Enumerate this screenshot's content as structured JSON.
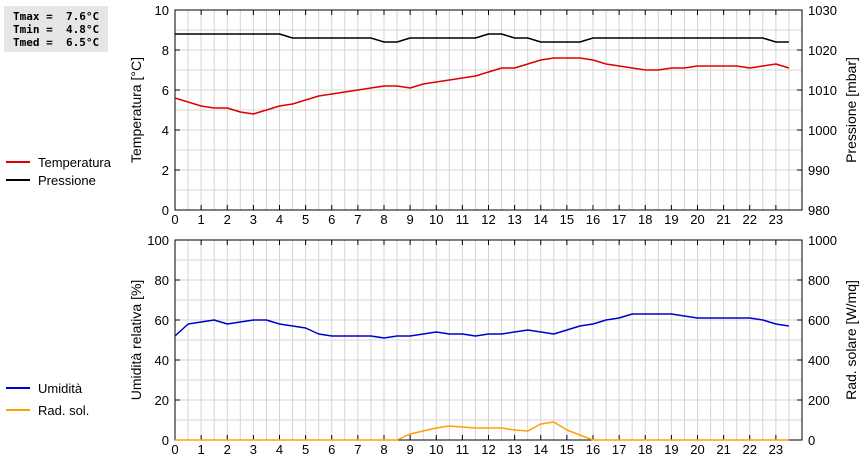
{
  "stats": {
    "tmax": "Tmax =  7.6°C",
    "tmin": "Tmin =  4.8°C",
    "tmed": "Tmed =  6.5°C"
  },
  "chart_data": [
    {
      "type": "line",
      "title": "",
      "xlabel": "",
      "ylabel": "Temperatura [°C]",
      "y2label": "Pressione [mbar]",
      "xlim": [
        0,
        24
      ],
      "ylim": [
        0,
        10
      ],
      "y2lim": [
        980,
        1030
      ],
      "x_ticks": [
        0,
        1,
        2,
        3,
        4,
        5,
        6,
        7,
        8,
        9,
        10,
        11,
        12,
        13,
        14,
        15,
        16,
        17,
        18,
        19,
        20,
        21,
        22,
        23
      ],
      "y_ticks": [
        0,
        2,
        4,
        6,
        8,
        10
      ],
      "y2_ticks": [
        980,
        990,
        1000,
        1010,
        1020,
        1030
      ],
      "grid": true,
      "legend_position": "left",
      "series": [
        {
          "name": "Temperatura",
          "axis": "left",
          "color": "#dd0000",
          "x": [
            0,
            0.5,
            1,
            1.5,
            2,
            2.5,
            3,
            3.5,
            4,
            4.5,
            5,
            5.5,
            6,
            6.5,
            7,
            7.5,
            8,
            8.5,
            9,
            9.5,
            10,
            10.5,
            11,
            11.5,
            12,
            12.5,
            13,
            13.5,
            14,
            14.5,
            15,
            15.5,
            16,
            16.5,
            17,
            17.5,
            18,
            18.5,
            19,
            19.5,
            20,
            20.5,
            21,
            21.5,
            22,
            22.5,
            23,
            23.5
          ],
          "y": [
            5.6,
            5.4,
            5.2,
            5.1,
            5.1,
            4.9,
            4.8,
            5.0,
            5.2,
            5.3,
            5.5,
            5.7,
            5.8,
            5.9,
            6.0,
            6.1,
            6.2,
            6.2,
            6.1,
            6.3,
            6.4,
            6.5,
            6.6,
            6.7,
            6.9,
            7.1,
            7.1,
            7.3,
            7.5,
            7.6,
            7.6,
            7.6,
            7.5,
            7.3,
            7.2,
            7.1,
            7.0,
            7.0,
            7.1,
            7.1,
            7.2,
            7.2,
            7.2,
            7.2,
            7.1,
            7.2,
            7.3,
            7.1
          ]
        },
        {
          "name": "Pressione",
          "axis": "right",
          "color": "#000000",
          "x": [
            0,
            0.5,
            1,
            1.5,
            2,
            2.5,
            3,
            3.5,
            4,
            4.5,
            5,
            5.5,
            6,
            6.5,
            7,
            7.5,
            8,
            8.5,
            9,
            9.5,
            10,
            10.5,
            11,
            11.5,
            12,
            12.5,
            13,
            13.5,
            14,
            14.5,
            15,
            15.5,
            16,
            16.5,
            17,
            17.5,
            18,
            18.5,
            19,
            19.5,
            20,
            20.5,
            21,
            21.5,
            22,
            22.5,
            23,
            23.5
          ],
          "y": [
            1024,
            1024,
            1024,
            1024,
            1024,
            1024,
            1024,
            1024,
            1024,
            1023,
            1023,
            1023,
            1023,
            1023,
            1023,
            1023,
            1022,
            1022,
            1023,
            1023,
            1023,
            1023,
            1023,
            1023,
            1024,
            1024,
            1023,
            1023,
            1022,
            1022,
            1022,
            1022,
            1023,
            1023,
            1023,
            1023,
            1023,
            1023,
            1023,
            1023,
            1023,
            1023,
            1023,
            1023,
            1023,
            1023,
            1022,
            1022
          ]
        }
      ]
    },
    {
      "type": "line",
      "title": "",
      "xlabel": "",
      "ylabel": "Umidità relativa [%]",
      "y2label": "Rad. solare [W/mq]",
      "xlim": [
        0,
        24
      ],
      "ylim": [
        0,
        100
      ],
      "y2lim": [
        0,
        1000
      ],
      "x_ticks": [
        0,
        1,
        2,
        3,
        4,
        5,
        6,
        7,
        8,
        9,
        10,
        11,
        12,
        13,
        14,
        15,
        16,
        17,
        18,
        19,
        20,
        21,
        22,
        23
      ],
      "y_ticks": [
        0,
        20,
        40,
        60,
        80,
        100
      ],
      "y2_ticks": [
        0,
        200,
        400,
        600,
        800,
        1000
      ],
      "grid": true,
      "legend_position": "left",
      "series": [
        {
          "name": "Umidità",
          "axis": "left",
          "color": "#0000cc",
          "x": [
            0,
            0.5,
            1,
            1.5,
            2,
            2.5,
            3,
            3.5,
            4,
            4.5,
            5,
            5.5,
            6,
            6.5,
            7,
            7.5,
            8,
            8.5,
            9,
            9.5,
            10,
            10.5,
            11,
            11.5,
            12,
            12.5,
            13,
            13.5,
            14,
            14.5,
            15,
            15.5,
            16,
            16.5,
            17,
            17.5,
            18,
            18.5,
            19,
            19.5,
            20,
            20.5,
            21,
            21.5,
            22,
            22.5,
            23,
            23.5
          ],
          "y": [
            52,
            58,
            59,
            60,
            58,
            59,
            60,
            60,
            58,
            57,
            56,
            53,
            52,
            52,
            52,
            52,
            51,
            52,
            52,
            53,
            54,
            53,
            53,
            52,
            53,
            53,
            54,
            55,
            54,
            53,
            55,
            57,
            58,
            60,
            61,
            63,
            63,
            63,
            63,
            62,
            61,
            61,
            61,
            61,
            61,
            60,
            58,
            57
          ]
        },
        {
          "name": "Rad. sol.",
          "axis": "right",
          "color": "#ffa000",
          "x": [
            0,
            0.5,
            1,
            1.5,
            2,
            2.5,
            3,
            3.5,
            4,
            4.5,
            5,
            5.5,
            6,
            6.5,
            7,
            7.5,
            8,
            8.5,
            9,
            9.5,
            10,
            10.5,
            11,
            11.5,
            12,
            12.5,
            13,
            13.5,
            14,
            14.5,
            15,
            15.5,
            16,
            16.5,
            17,
            17.5,
            18,
            18.5,
            19,
            19.5,
            20,
            20.5,
            21,
            21.5,
            22,
            22.5,
            23,
            23.5
          ],
          "y": [
            0,
            0,
            0,
            0,
            0,
            0,
            0,
            0,
            0,
            0,
            0,
            0,
            0,
            0,
            0,
            0,
            0,
            0,
            30,
            45,
            60,
            70,
            65,
            60,
            60,
            60,
            50,
            45,
            80,
            90,
            50,
            25,
            0,
            0,
            0,
            0,
            0,
            0,
            0,
            0,
            0,
            0,
            0,
            0,
            0,
            0,
            0,
            0
          ]
        }
      ]
    }
  ]
}
